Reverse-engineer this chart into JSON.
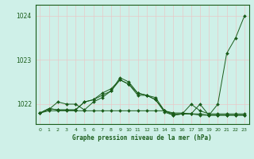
{
  "title": "Graphe pression niveau de la mer (hPa)",
  "background_color": "#cff0e8",
  "grid_color": "#e8c8c8",
  "line_color": "#1a5c1a",
  "xlim": [
    -0.5,
    23.5
  ],
  "ylim": [
    1021.55,
    1024.25
  ],
  "yticks": [
    1022,
    1023,
    1024
  ],
  "xticks": [
    0,
    1,
    2,
    3,
    4,
    5,
    6,
    7,
    8,
    9,
    10,
    11,
    12,
    13,
    14,
    15,
    16,
    17,
    18,
    19,
    20,
    21,
    22,
    23
  ],
  "series": [
    [
      1021.8,
      1021.85,
      1021.85,
      1021.85,
      1021.85,
      1021.85,
      1021.85,
      1021.85,
      1021.85,
      1021.85,
      1021.85,
      1021.85,
      1021.85,
      1021.85,
      1021.85,
      1021.8,
      1021.8,
      1021.78,
      1021.75,
      1021.75,
      1021.75,
      1021.75,
      1021.75,
      1021.75
    ],
    [
      1021.8,
      1021.9,
      1021.87,
      1021.87,
      1021.87,
      1022.05,
      1022.1,
      1022.25,
      1022.35,
      1022.55,
      1022.45,
      1022.25,
      1022.2,
      1022.1,
      1021.85,
      1021.78,
      1021.78,
      1022.0,
      1021.85,
      1021.78,
      1021.78,
      1021.78,
      1021.78,
      1021.78
    ],
    [
      1021.8,
      1021.9,
      1021.87,
      1021.87,
      1021.87,
      1022.05,
      1022.1,
      1022.2,
      1022.3,
      1022.55,
      1022.45,
      1022.2,
      1022.2,
      1022.1,
      1021.82,
      1021.75,
      1021.78,
      1021.78,
      1022.0,
      1021.75,
      1022.0,
      1023.15,
      1023.5,
      1024.0
    ],
    [
      1021.8,
      1021.88,
      1022.05,
      1022.0,
      1022.0,
      1021.87,
      1022.05,
      1022.15,
      1022.3,
      1022.6,
      1022.5,
      1022.25,
      1022.2,
      1022.15,
      1021.85,
      1021.75,
      1021.78,
      1021.78,
      1021.78,
      1021.75,
      1021.75,
      1021.75,
      1021.75,
      1021.75
    ]
  ]
}
